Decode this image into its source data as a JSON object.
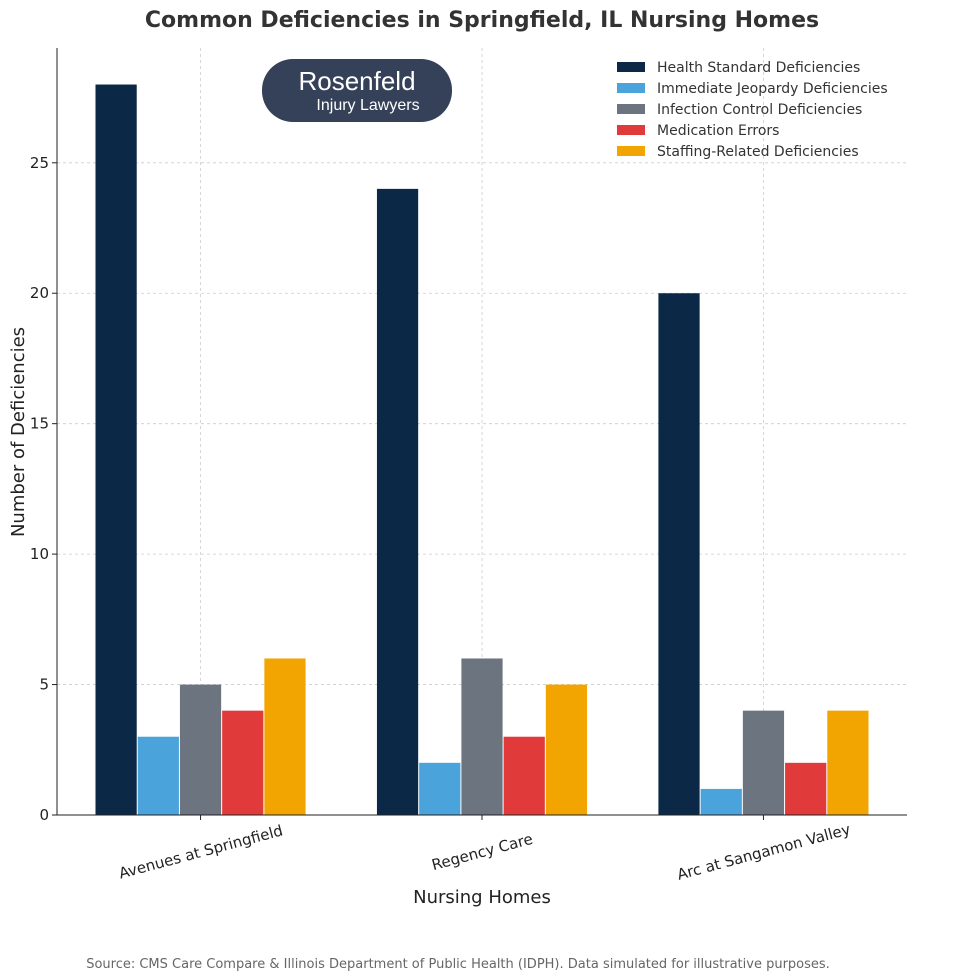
{
  "chart_data": {
    "type": "bar",
    "title": "Common Deficiencies in Springfield, IL Nursing Homes",
    "xlabel": "Nursing Homes",
    "ylabel": "Number of Deficiencies",
    "categories": [
      "Avenues at Springfield",
      "Regency Care",
      "Arc at Sangamon Valley"
    ],
    "series": [
      {
        "name": "Health Standard Deficiencies",
        "color": "#0b2847",
        "values": [
          28,
          24,
          20
        ]
      },
      {
        "name": "Immediate Jeopardy Deficiencies",
        "color": "#4ba3db",
        "values": [
          3,
          2,
          1
        ]
      },
      {
        "name": "Infection Control Deficiencies",
        "color": "#6c7480",
        "values": [
          5,
          6,
          4
        ]
      },
      {
        "name": "Medication Errors",
        "color": "#e03a3a",
        "values": [
          4,
          3,
          2
        ]
      },
      {
        "name": "Staffing-Related Deficiencies",
        "color": "#f2a500",
        "values": [
          6,
          5,
          4
        ]
      }
    ],
    "ylim": [
      0,
      29.4
    ],
    "yticks": [
      0,
      5,
      10,
      15,
      20,
      25
    ],
    "grid": true,
    "legend": "top-right"
  },
  "logo": {
    "line1": "Rosenfeld",
    "line2": "Injury Lawyers",
    "color": "#344158"
  },
  "source": "Source: CMS Care Compare & Illinois Department of Public Health (IDPH). Data simulated for illustrative purposes."
}
